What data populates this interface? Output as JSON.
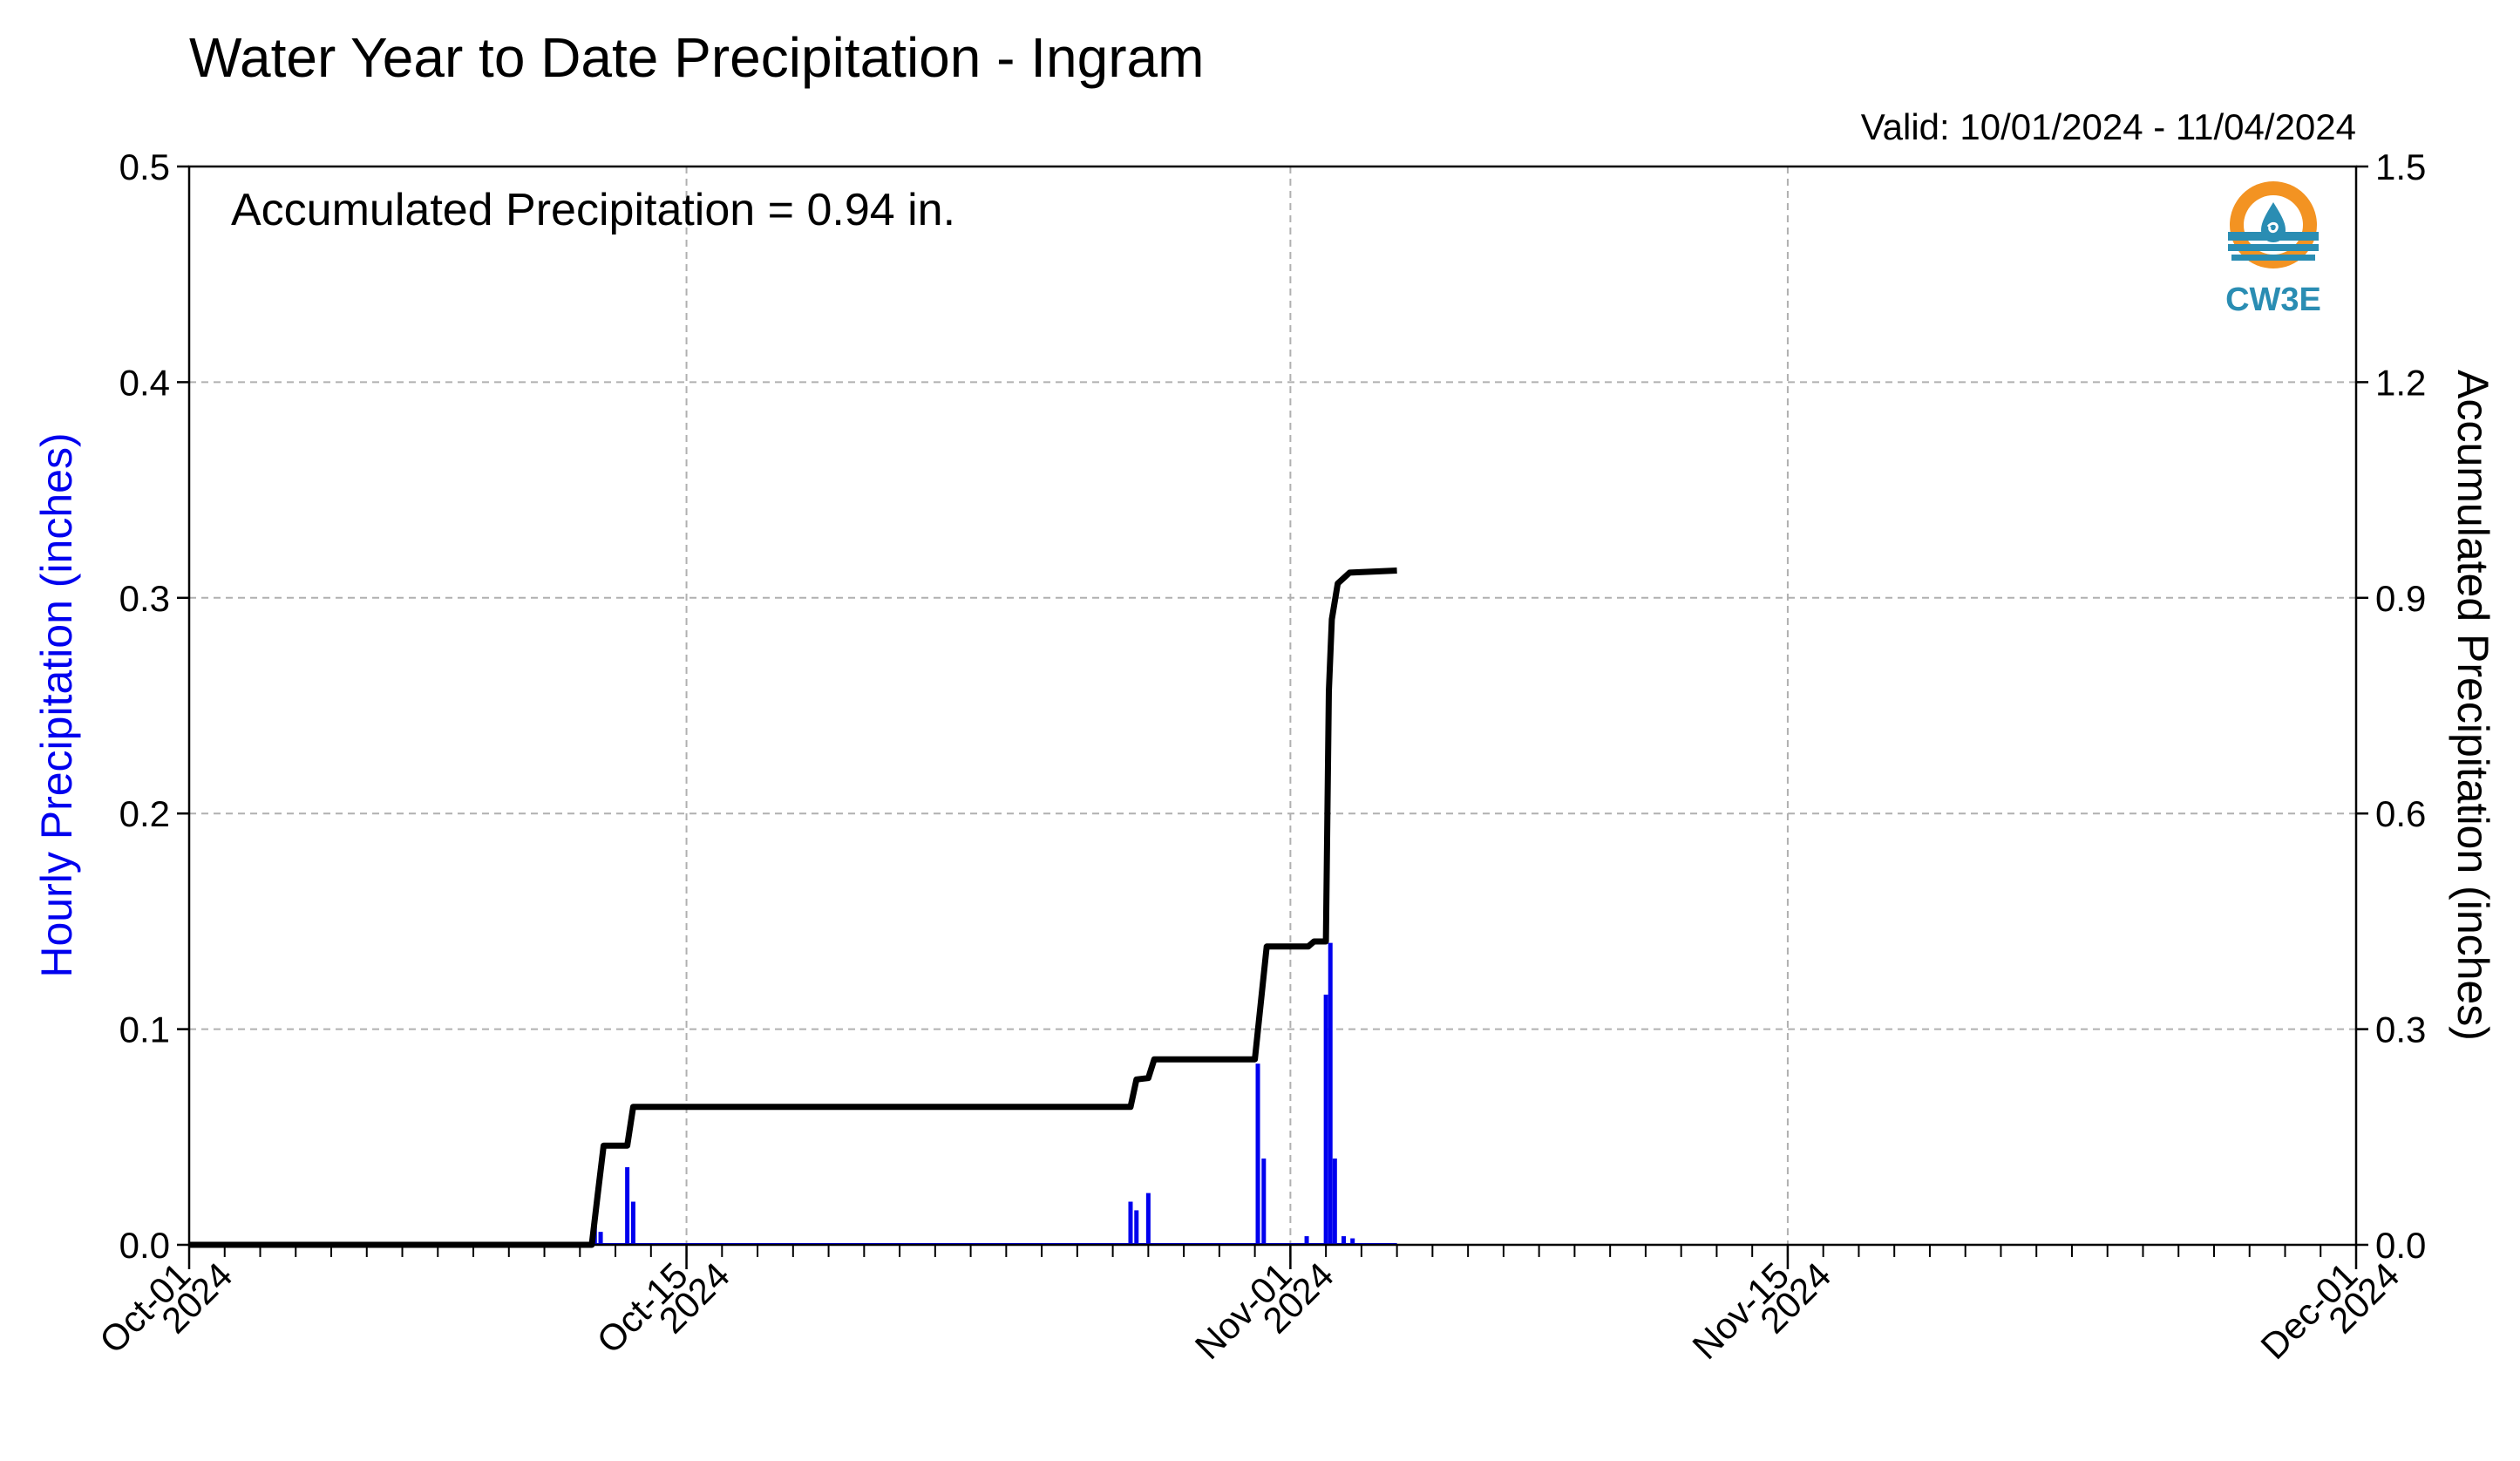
{
  "header": {
    "title": "Water Year to Date Precipitation - Ingram",
    "valid": "Valid: 10/01/2024 - 11/04/2024"
  },
  "annotation": "Accumulated Precipitation = 0.94 in.",
  "logo": {
    "text": "CW3E"
  },
  "axes": {
    "ylabel_left": "Hourly Precipitation (inches)",
    "ylabel_right": "Accumulated Precipitation (inches)",
    "left_ticks": [
      "0.0",
      "0.1",
      "0.2",
      "0.3",
      "0.4",
      "0.5"
    ],
    "right_ticks": [
      "0.0",
      "0.3",
      "0.6",
      "0.9",
      "1.2",
      "1.5"
    ],
    "x_ticks": [
      {
        "line1": "Oct-01",
        "line2": "2024"
      },
      {
        "line1": "Oct-15",
        "line2": "2024"
      },
      {
        "line1": "Nov-01",
        "line2": "2024"
      },
      {
        "line1": "Nov-15",
        "line2": "2024"
      },
      {
        "line1": "Dec-01",
        "line2": "2024"
      }
    ]
  },
  "colors": {
    "hourly": "#0000ee",
    "accumulated": "#000000",
    "grid": "#b0b0b0"
  },
  "chart_data": {
    "type": "bar",
    "grid": true,
    "xlim": [
      "2024-10-01",
      "2024-12-01"
    ],
    "ylim_left": [
      0,
      0.5
    ],
    "ylim_right": [
      0,
      1.5
    ],
    "x_tick_dates": [
      "2024-10-01",
      "2024-10-15",
      "2024-11-01",
      "2024-11-15",
      "2024-12-01"
    ],
    "series": [
      {
        "axis": "left",
        "kind": "bar",
        "points": [
          [
            "2024-10-12T10:00",
            0.012
          ],
          [
            "2024-10-12T14:00",
            0.006
          ],
          [
            "2024-10-13T08:00",
            0.036
          ],
          [
            "2024-10-13T12:00",
            0.02
          ],
          [
            "2024-10-27T12:00",
            0.02
          ],
          [
            "2024-10-27T16:00",
            0.016
          ],
          [
            "2024-10-28T00:00",
            0.024
          ],
          [
            "2024-10-31T02:00",
            0.084
          ],
          [
            "2024-10-31T06:00",
            0.04
          ],
          [
            "2024-11-01T11:00",
            0.004
          ],
          [
            "2024-11-02T00:00",
            0.116
          ],
          [
            "2024-11-02T03:00",
            0.14
          ],
          [
            "2024-11-02T06:00",
            0.04
          ],
          [
            "2024-11-02T12:00",
            0.004
          ],
          [
            "2024-11-02T18:00",
            0.003
          ]
        ]
      },
      {
        "axis": "right",
        "kind": "step-line",
        "points": [
          [
            "2024-10-01T00:00",
            0.0
          ],
          [
            "2024-10-12T08:00",
            0.0
          ],
          [
            "2024-10-12T12:00",
            0.07
          ],
          [
            "2024-10-12T16:00",
            0.138
          ],
          [
            "2024-10-13T08:00",
            0.138
          ],
          [
            "2024-10-13T12:00",
            0.192
          ],
          [
            "2024-10-27T12:00",
            0.192
          ],
          [
            "2024-10-27T16:00",
            0.23
          ],
          [
            "2024-10-28T00:00",
            0.232
          ],
          [
            "2024-10-28T04:00",
            0.258
          ],
          [
            "2024-10-31T00:00",
            0.258
          ],
          [
            "2024-10-31T08:00",
            0.415
          ],
          [
            "2024-11-01T12:00",
            0.415
          ],
          [
            "2024-11-01T16:00",
            0.422
          ],
          [
            "2024-11-02T00:00",
            0.422
          ],
          [
            "2024-11-02T02:00",
            0.77
          ],
          [
            "2024-11-02T04:00",
            0.87
          ],
          [
            "2024-11-02T08:00",
            0.92
          ],
          [
            "2024-11-02T16:00",
            0.935
          ],
          [
            "2024-11-04T00:00",
            0.938
          ]
        ]
      }
    ]
  }
}
